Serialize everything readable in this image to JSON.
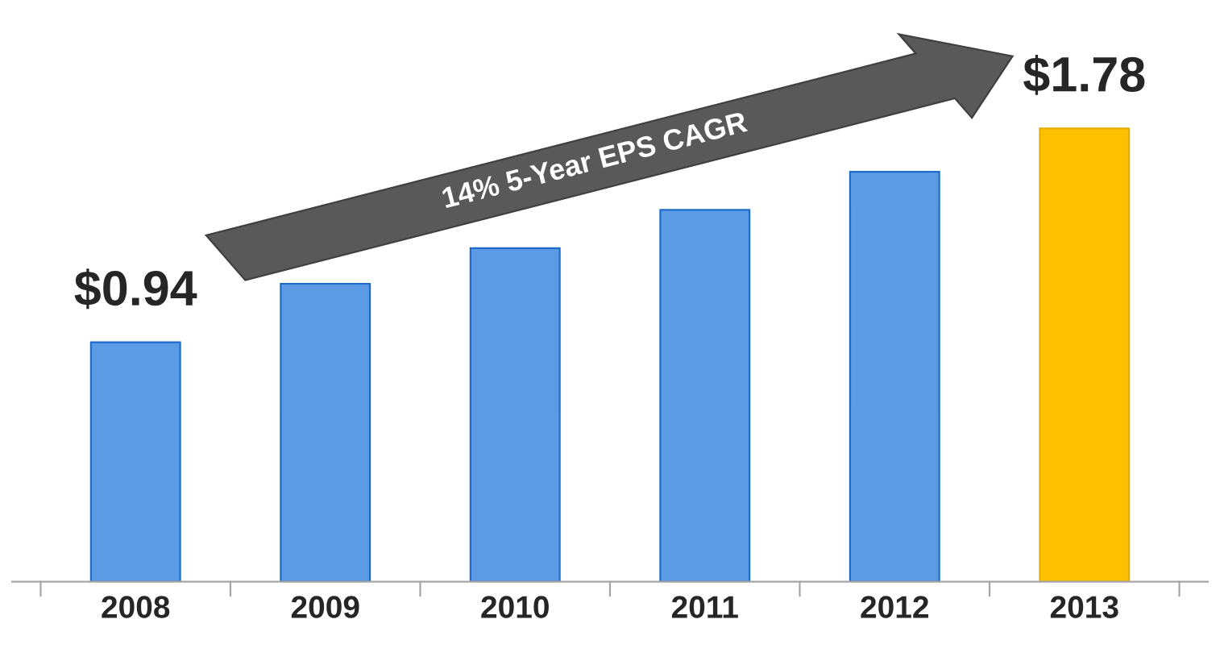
{
  "chart_data": {
    "type": "bar",
    "categories": [
      "2008",
      "2009",
      "2010",
      "2011",
      "2012",
      "2013"
    ],
    "values": [
      0.94,
      1.17,
      1.31,
      1.46,
      1.61,
      1.78
    ],
    "colors": [
      "#5b9be6",
      "#5b9be6",
      "#5b9be6",
      "#5b9be6",
      "#5b9be6",
      "#ffc000"
    ],
    "value_labels": [
      "$0.94",
      null,
      null,
      null,
      null,
      "$1.78"
    ],
    "annotations": [
      "14% 5-Year EPS CAGR"
    ],
    "grid": false,
    "legend": false
  }
}
